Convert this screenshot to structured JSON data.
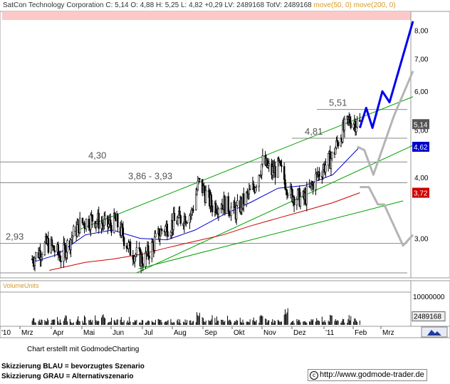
{
  "header": {
    "text": "SatCon Technology Corporation C: 5,14 O: 4,88 H: 5,25 L: 4,82 +0,29 LV: 2489168 TotV: 2489168",
    "moving_averages": "move(50, 0) move(200, 0)"
  },
  "credit": "Chart erstellt mit GodmodeCharting",
  "legend": {
    "blue": "Skizzierung BLAU = bevorzugtes Szenario",
    "gray": "Skizzierung GRAU = Alternativszenario"
  },
  "footer_url": "http://www.godmode-trader.de",
  "colors": {
    "candles": "#000000",
    "ma50": "#0000cc",
    "ma200": "#cc0000",
    "channel": "#00a000",
    "scenario_blue": "#0000ee",
    "scenario_gray": "#b4b4b4",
    "resistance_band": "#fcc8c8"
  },
  "chart_data": {
    "type": "candlestick",
    "scale": "log",
    "ylim": [
      2.55,
      8.4
    ],
    "y_ticks": [
      "8,00",
      "7,00",
      "6,00",
      "5,00",
      "4,00",
      "3,00"
    ],
    "x_ticks": [
      "'10",
      "Mrz",
      "Apr",
      "Mai",
      "Jun",
      "Jul",
      "Aug",
      "Sep",
      "Okt",
      "Nov",
      "Dez",
      "'11",
      "Feb",
      "Mrz"
    ],
    "annotations": [
      {
        "label": "5,51",
        "value": 5.51
      },
      {
        "label": "4,81",
        "value": 4.81
      },
      {
        "label": "4,30",
        "value": 4.3
      },
      {
        "label": "3,86 - 3,93",
        "value": 3.9
      },
      {
        "label": "2,93",
        "value": 2.93
      }
    ],
    "price_tags": [
      {
        "label": "5,14",
        "value": 5.14,
        "color": "#555555"
      },
      {
        "label": "4,62",
        "value": 4.62,
        "color": "#0000cc"
      },
      {
        "label": "3,72",
        "value": 3.72,
        "color": "#cc0000"
      }
    ],
    "price_path": [
      {
        "x": "2010-02-01",
        "y": 2.72
      },
      {
        "x": "2010-02-18",
        "y": 2.93
      },
      {
        "x": "2010-03-05",
        "y": 2.75
      },
      {
        "x": "2010-03-25",
        "y": 3.2
      },
      {
        "x": "2010-04-10",
        "y": 3.3
      },
      {
        "x": "2010-04-25",
        "y": 3.18
      },
      {
        "x": "2010-05-05",
        "y": 3.25
      },
      {
        "x": "2010-05-20",
        "y": 2.85
      },
      {
        "x": "2010-06-05",
        "y": 2.7
      },
      {
        "x": "2010-06-25",
        "y": 3.12
      },
      {
        "x": "2010-07-10",
        "y": 3.25
      },
      {
        "x": "2010-07-28",
        "y": 3.38
      },
      {
        "x": "2010-08-05",
        "y": 3.9
      },
      {
        "x": "2010-08-20",
        "y": 3.5
      },
      {
        "x": "2010-09-01",
        "y": 3.55
      },
      {
        "x": "2010-09-15",
        "y": 3.4
      },
      {
        "x": "2010-09-25",
        "y": 3.6
      },
      {
        "x": "2010-10-05",
        "y": 3.8
      },
      {
        "x": "2010-10-15",
        "y": 4.3
      },
      {
        "x": "2010-10-25",
        "y": 4.1
      },
      {
        "x": "2010-11-02",
        "y": 4.2
      },
      {
        "x": "2010-11-15",
        "y": 3.7
      },
      {
        "x": "2010-11-30",
        "y": 3.6
      },
      {
        "x": "2010-12-15",
        "y": 4.05
      },
      {
        "x": "2010-12-31",
        "y": 4.4
      },
      {
        "x": "2011-01-10",
        "y": 4.9
      },
      {
        "x": "2011-01-20",
        "y": 5.25
      },
      {
        "x": "2011-01-31",
        "y": 5.14
      }
    ],
    "ma50": [
      {
        "x": "2010-02-01",
        "y": 2.68
      },
      {
        "x": "2010-03-01",
        "y": 2.78
      },
      {
        "x": "2010-04-01",
        "y": 3.05
      },
      {
        "x": "2010-05-01",
        "y": 3.12
      },
      {
        "x": "2010-06-01",
        "y": 3.0
      },
      {
        "x": "2010-07-01",
        "y": 2.98
      },
      {
        "x": "2010-08-01",
        "y": 3.12
      },
      {
        "x": "2010-09-01",
        "y": 3.35
      },
      {
        "x": "2010-10-01",
        "y": 3.55
      },
      {
        "x": "2010-11-01",
        "y": 3.8
      },
      {
        "x": "2010-12-01",
        "y": 3.85
      },
      {
        "x": "2011-01-01",
        "y": 4.05
      },
      {
        "x": "2011-01-31",
        "y": 4.62
      }
    ],
    "ma200": [
      {
        "x": "2010-02-20",
        "y": 2.58
      },
      {
        "x": "2010-04-01",
        "y": 2.68
      },
      {
        "x": "2010-05-01",
        "y": 2.72
      },
      {
        "x": "2010-06-01",
        "y": 2.78
      },
      {
        "x": "2010-07-01",
        "y": 2.87
      },
      {
        "x": "2010-08-01",
        "y": 2.96
      },
      {
        "x": "2010-09-01",
        "y": 3.05
      },
      {
        "x": "2010-10-01",
        "y": 3.18
      },
      {
        "x": "2010-11-01",
        "y": 3.3
      },
      {
        "x": "2010-12-01",
        "y": 3.42
      },
      {
        "x": "2011-01-01",
        "y": 3.55
      },
      {
        "x": "2011-01-31",
        "y": 3.72
      }
    ],
    "channel_lines": [
      {
        "from": {
          "x": "2010-03-20",
          "y": 3.1
        },
        "to": {
          "x": "2011-03-31",
          "y": 5.85
        }
      },
      {
        "from": {
          "x": "2010-05-28",
          "y": 2.55
        },
        "to": {
          "x": "2011-03-31",
          "y": 4.65
        }
      },
      {
        "from": {
          "x": "2010-05-30",
          "y": 2.6
        },
        "to": {
          "x": "2011-03-20",
          "y": 3.58
        }
      }
    ],
    "scenario_blue": [
      {
        "x": "2011-01-31",
        "y": 5.05
      },
      {
        "x": "2011-02-07",
        "y": 5.55
      },
      {
        "x": "2011-02-14",
        "y": 5.05
      },
      {
        "x": "2011-02-25",
        "y": 6.0
      },
      {
        "x": "2011-03-05",
        "y": 5.7
      },
      {
        "x": "2011-03-31",
        "y": 8.35
      }
    ],
    "scenario_gray_1": [
      {
        "x": "2011-01-28",
        "y": 4.62
      },
      {
        "x": "2011-02-05",
        "y": 4.55
      },
      {
        "x": "2011-02-15",
        "y": 4.05
      },
      {
        "x": "2011-03-10",
        "y": 5.35
      },
      {
        "x": "2011-03-31",
        "y": 6.6
      }
    ],
    "scenario_gray_2": [
      {
        "x": "2011-01-31",
        "y": 3.82
      },
      {
        "x": "2011-02-10",
        "y": 3.82
      },
      {
        "x": "2011-02-20",
        "y": 3.52
      },
      {
        "x": "2011-02-27",
        "y": 3.52
      },
      {
        "x": "2011-03-20",
        "y": 2.9
      },
      {
        "x": "2011-03-31",
        "y": 3.05
      }
    ],
    "volume": {
      "axis_label": "VolumeUnits",
      "max_label": "10000000",
      "last_label": "2489168",
      "last_value": 2489168,
      "max_value": 10000000,
      "typical_range": [
        500000,
        3000000
      ],
      "spikes": [
        {
          "x": "2010-04-20",
          "value": 3500000
        },
        {
          "x": "2010-08-05",
          "value": 4000000
        },
        {
          "x": "2010-10-15",
          "value": 4500000
        },
        {
          "x": "2010-11-10",
          "value": 5200000
        },
        {
          "x": "2010-12-31",
          "value": 3800000
        }
      ]
    }
  }
}
